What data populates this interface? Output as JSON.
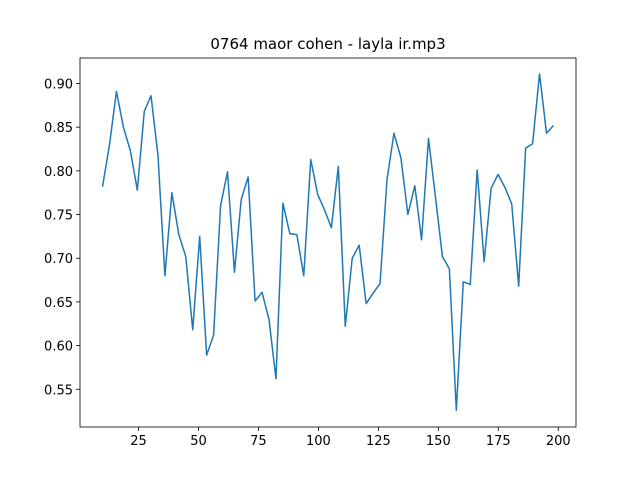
{
  "chart_data": {
    "type": "line",
    "title": "0764 maor cohen - layla ir.mp3",
    "x": [
      10.0,
      12.9,
      15.8,
      18.7,
      21.6,
      24.5,
      27.4,
      30.2,
      33.1,
      36.0,
      38.9,
      41.8,
      44.7,
      47.6,
      50.5,
      53.4,
      56.3,
      59.2,
      62.1,
      65.0,
      67.8,
      70.7,
      73.6,
      76.5,
      79.4,
      82.3,
      85.2,
      88.1,
      91.0,
      93.9,
      96.8,
      99.7,
      102.6,
      105.4,
      108.3,
      111.2,
      114.1,
      117.0,
      119.9,
      122.8,
      125.7,
      128.6,
      131.5,
      134.4,
      137.3,
      140.2,
      143.0,
      145.9,
      148.8,
      151.7,
      154.6,
      157.5,
      160.4,
      163.3,
      166.2,
      169.1,
      172.0,
      174.9,
      177.8,
      180.6,
      183.5,
      186.4,
      189.3,
      192.2,
      195.1,
      198.0
    ],
    "series": [
      {
        "color": "#1f77b4",
        "values": [
          0.782,
          0.83,
          0.891,
          0.85,
          0.823,
          0.778,
          0.868,
          0.886,
          0.818,
          0.68,
          0.775,
          0.727,
          0.702,
          0.618,
          0.725,
          0.589,
          0.612,
          0.76,
          0.799,
          0.684,
          0.767,
          0.793,
          0.651,
          0.661,
          0.63,
          0.562,
          0.763,
          0.728,
          0.727,
          0.68,
          0.813,
          0.773,
          0.755,
          0.735,
          0.805,
          0.622,
          0.7,
          0.715,
          0.648,
          0.66,
          0.671,
          0.79,
          0.843,
          0.815,
          0.75,
          0.783,
          0.721,
          0.837,
          0.77,
          0.702,
          0.688,
          0.526,
          0.673,
          0.67,
          0.801,
          0.696,
          0.78,
          0.796,
          0.781,
          0.762,
          0.668,
          0.826,
          0.831,
          0.911,
          0.843,
          0.852
        ]
      }
    ],
    "xlim": [
      0.6,
      207.4
    ],
    "ylim": [
      0.5068,
      0.9292
    ],
    "xticks": [
      25,
      50,
      75,
      100,
      125,
      150,
      175,
      200
    ],
    "yticks": [
      0.55,
      {
        "value": 0.6,
        "label": "0.60"
      },
      0.65,
      {
        "value": 0.7,
        "label": "0.70"
      },
      0.75,
      {
        "value": 0.8,
        "label": "0.80"
      },
      0.85,
      {
        "value": 0.9,
        "label": "0.90"
      }
    ]
  }
}
